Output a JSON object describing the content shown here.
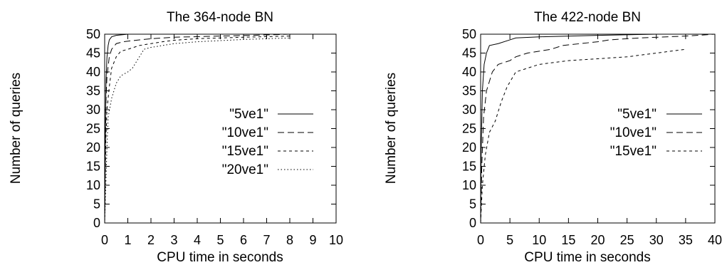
{
  "chart_data": [
    {
      "type": "line",
      "title": "The 364-node BN",
      "xlabel": "CPU time in seconds",
      "ylabel": "Number of queries",
      "xlim": [
        0,
        10
      ],
      "ylim": [
        0,
        50
      ],
      "xticks": [
        0,
        1,
        2,
        3,
        4,
        5,
        6,
        7,
        8,
        9,
        10
      ],
      "yticks": [
        0,
        5,
        10,
        15,
        20,
        25,
        30,
        35,
        40,
        45,
        50
      ],
      "grid": false,
      "legend_position": "right",
      "series": [
        {
          "name": "\"5ve1\"",
          "dash": "solid",
          "points": [
            [
              0,
              0
            ],
            [
              0.02,
              15
            ],
            [
              0.04,
              30
            ],
            [
              0.06,
              38
            ],
            [
              0.1,
              44
            ],
            [
              0.15,
              47
            ],
            [
              0.2,
              48.5
            ],
            [
              0.3,
              49.3
            ],
            [
              0.5,
              49.7
            ],
            [
              1,
              50
            ],
            [
              10,
              50
            ]
          ]
        },
        {
          "name": "\"10ve1\"",
          "dash": "dashed",
          "points": [
            [
              0,
              0
            ],
            [
              0.03,
              20
            ],
            [
              0.06,
              33
            ],
            [
              0.1,
              39
            ],
            [
              0.2,
              44
            ],
            [
              0.3,
              46
            ],
            [
              0.5,
              47.5
            ],
            [
              0.8,
              48
            ],
            [
              1.5,
              48.5
            ],
            [
              2,
              48.8
            ],
            [
              3,
              49.2
            ],
            [
              5,
              49.5
            ],
            [
              7,
              49.8
            ],
            [
              8,
              50
            ]
          ]
        },
        {
          "name": "\"15ve1\"",
          "dash": "short-dashed",
          "points": [
            [
              0,
              0
            ],
            [
              0.05,
              22
            ],
            [
              0.1,
              30
            ],
            [
              0.2,
              36
            ],
            [
              0.3,
              41
            ],
            [
              0.5,
              44
            ],
            [
              0.7,
              45.5
            ],
            [
              1,
              46
            ],
            [
              1.5,
              47
            ],
            [
              2,
              47.5
            ],
            [
              2.5,
              48
            ],
            [
              3,
              48.4
            ],
            [
              4,
              48.8
            ],
            [
              5,
              49
            ],
            [
              6,
              49.2
            ],
            [
              8,
              49.5
            ]
          ]
        },
        {
          "name": "\"20ve1\"",
          "dash": "dotted",
          "points": [
            [
              0,
              0
            ],
            [
              0.05,
              10
            ],
            [
              0.1,
              20
            ],
            [
              0.15,
              28
            ],
            [
              0.3,
              33
            ],
            [
              0.4,
              35
            ],
            [
              0.5,
              37
            ],
            [
              0.7,
              39
            ],
            [
              1,
              40
            ],
            [
              1.2,
              41
            ],
            [
              1.5,
              44
            ],
            [
              1.7,
              46
            ],
            [
              2,
              46.5
            ],
            [
              2.5,
              47
            ],
            [
              3,
              47.5
            ],
            [
              4,
              48
            ],
            [
              5,
              48.3
            ],
            [
              6,
              48.6
            ],
            [
              7,
              48.8
            ],
            [
              8,
              49
            ]
          ]
        }
      ]
    },
    {
      "type": "line",
      "title": "The 422-node BN",
      "xlabel": "CPU time in seconds",
      "ylabel": "Number of queries",
      "xlim": [
        0,
        40
      ],
      "ylim": [
        0,
        50
      ],
      "xticks": [
        0,
        5,
        10,
        15,
        20,
        25,
        30,
        35,
        40
      ],
      "yticks": [
        0,
        5,
        10,
        15,
        20,
        25,
        30,
        35,
        40,
        45,
        50
      ],
      "grid": false,
      "legend_position": "right",
      "series": [
        {
          "name": "\"5ve1\"",
          "dash": "solid",
          "points": [
            [
              0,
              0
            ],
            [
              0.1,
              20
            ],
            [
              0.3,
              35
            ],
            [
              0.6,
              42
            ],
            [
              1,
              45
            ],
            [
              1.5,
              47
            ],
            [
              3,
              47.5
            ],
            [
              5,
              48.5
            ],
            [
              6,
              49
            ],
            [
              10,
              49.3
            ],
            [
              20,
              49.7
            ],
            [
              30,
              50
            ],
            [
              40,
              50
            ]
          ]
        },
        {
          "name": "\"10ve1\"",
          "dash": "dashed",
          "points": [
            [
              0,
              0
            ],
            [
              0.2,
              15
            ],
            [
              0.5,
              28
            ],
            [
              1,
              35
            ],
            [
              2,
              40
            ],
            [
              3,
              42
            ],
            [
              5,
              43
            ],
            [
              6,
              44
            ],
            [
              8,
              45
            ],
            [
              10,
              45.5
            ],
            [
              12,
              46
            ],
            [
              14,
              47
            ],
            [
              17,
              47.5
            ],
            [
              20,
              48
            ],
            [
              22,
              48.5
            ],
            [
              27,
              49
            ],
            [
              35,
              49.5
            ],
            [
              40,
              50
            ]
          ]
        },
        {
          "name": "\"15ve1\"",
          "dash": "short-dashed",
          "points": [
            [
              0,
              0
            ],
            [
              0.3,
              10
            ],
            [
              0.8,
              18
            ],
            [
              1.5,
              24
            ],
            [
              2.5,
              27
            ],
            [
              3.5,
              32
            ],
            [
              4.5,
              36
            ],
            [
              6,
              40
            ],
            [
              8,
              41
            ],
            [
              10,
              42
            ],
            [
              15,
              43
            ],
            [
              20,
              43.5
            ],
            [
              25,
              44
            ],
            [
              30,
              45
            ],
            [
              35,
              46
            ]
          ]
        }
      ]
    }
  ]
}
